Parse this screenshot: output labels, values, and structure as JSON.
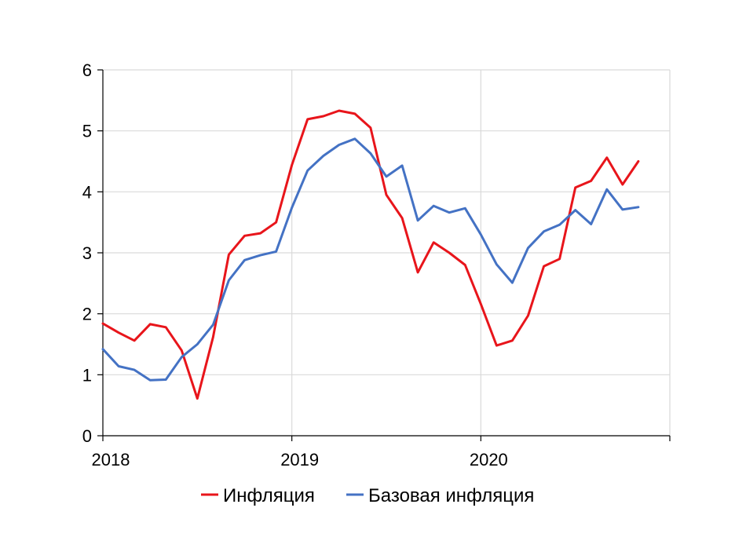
{
  "chart_data": {
    "type": "line",
    "title": "",
    "xlabel": "",
    "ylabel": "",
    "ylim": [
      0,
      6
    ],
    "yticks": [
      0,
      1,
      2,
      3,
      4,
      5,
      6
    ],
    "xlim": [
      "2018-01",
      "2021-01"
    ],
    "xticks": [
      {
        "label": "2018",
        "x": "2018-01"
      },
      {
        "label": "2019",
        "x": "2019-01"
      },
      {
        "label": "2020",
        "x": "2020-01"
      }
    ],
    "grid": true,
    "legend_position": "bottom",
    "x": [
      "2018-01",
      "2018-02",
      "2018-03",
      "2018-04",
      "2018-05",
      "2018-06",
      "2018-07",
      "2018-08",
      "2018-09",
      "2018-10",
      "2018-11",
      "2018-12",
      "2019-01",
      "2019-02",
      "2019-03",
      "2019-04",
      "2019-05",
      "2019-06",
      "2019-07",
      "2019-08",
      "2019-09",
      "2019-10",
      "2019-11",
      "2019-12",
      "2020-01",
      "2020-02",
      "2020-03",
      "2020-04",
      "2020-05",
      "2020-06",
      "2020-07",
      "2020-08",
      "2020-09",
      "2020-10"
    ],
    "series": [
      {
        "name": "Инфляция",
        "color": "#e8151b",
        "values": [
          1.84,
          1.69,
          1.56,
          1.83,
          1.78,
          1.4,
          0.61,
          1.62,
          2.97,
          3.28,
          3.32,
          3.5,
          4.44,
          5.19,
          5.24,
          5.33,
          5.28,
          5.05,
          3.95,
          3.57,
          2.68,
          3.17,
          3.0,
          2.8,
          2.16,
          1.48,
          1.56,
          1.97,
          2.78,
          2.9,
          4.07,
          4.18,
          4.56,
          4.12
        ]
      },
      {
        "name": "Базовая инфляция",
        "color": "#4472c4",
        "values": [
          1.42,
          1.14,
          1.08,
          0.91,
          0.92,
          1.29,
          1.5,
          1.82,
          2.55,
          2.88,
          2.96,
          3.02,
          3.74,
          4.35,
          4.59,
          4.77,
          4.87,
          4.63,
          4.25,
          4.43,
          3.53,
          3.77,
          3.66,
          3.73,
          3.3,
          2.81,
          2.51,
          3.08,
          3.35,
          3.46,
          3.7,
          3.47,
          4.04,
          3.71
        ]
      }
    ],
    "extra_points": {
      "Инфляция": {
        "x": "2020-11",
        "y": 4.5
      },
      "Базовая инфляция": {
        "x": "2020-11",
        "y": 3.75
      }
    }
  }
}
